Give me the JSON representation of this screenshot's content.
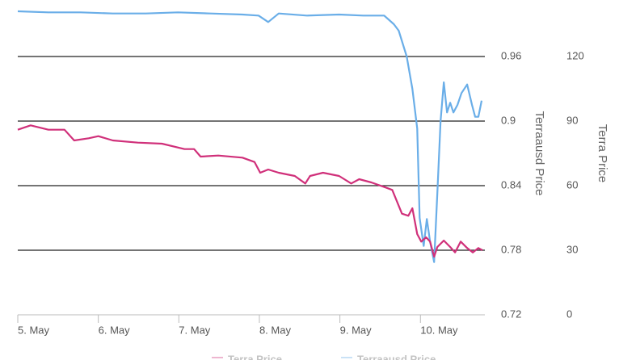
{
  "chart_data": {
    "type": "line",
    "y_title": "Terraausd Price",
    "y2_title": "Terra Price",
    "xlim": [
      5,
      10.8
    ],
    "xticks": [
      {
        "value": 5,
        "label": "5. May"
      },
      {
        "value": 6,
        "label": "6. May"
      },
      {
        "value": 7,
        "label": "7. May"
      },
      {
        "value": 8,
        "label": "8. May"
      },
      {
        "value": 9,
        "label": "9. May"
      },
      {
        "value": 10,
        "label": "10. May"
      }
    ],
    "ylim": [
      0.72,
      1.02
    ],
    "yticks": [
      0.72,
      0.78,
      0.84,
      0.9,
      0.96
    ],
    "y2lim": [
      0,
      150
    ],
    "y2ticks": [
      0,
      30,
      60,
      90,
      120
    ],
    "grid": true,
    "series": [
      {
        "name": "Terraausd Price",
        "color": "#6aaee8",
        "x": [
          5.0,
          5.38,
          5.78,
          6.18,
          6.59,
          6.99,
          7.39,
          7.79,
          7.99,
          8.11,
          8.24,
          8.59,
          8.99,
          9.29,
          9.55,
          9.67,
          9.73,
          9.83,
          9.9,
          9.96,
          9.99,
          10.04,
          10.08,
          10.12,
          10.17,
          10.21,
          10.25,
          10.29,
          10.33,
          10.37,
          10.41,
          10.46,
          10.51,
          10.58,
          10.64,
          10.68,
          10.72,
          10.76
        ],
        "values": [
          1.002,
          1.001,
          1.001,
          1.0,
          1.0,
          1.001,
          1.0,
          0.999,
          0.998,
          0.992,
          1.0,
          0.998,
          0.999,
          0.998,
          0.998,
          0.99,
          0.984,
          0.96,
          0.93,
          0.893,
          0.81,
          0.784,
          0.809,
          0.788,
          0.769,
          0.833,
          0.9,
          0.936,
          0.908,
          0.917,
          0.908,
          0.915,
          0.926,
          0.934,
          0.915,
          0.904,
          0.904,
          0.919
        ]
      },
      {
        "name": "Terra Price",
        "color": "#d0307a",
        "axis": "y2",
        "x": [
          5.0,
          5.16,
          5.38,
          5.58,
          5.7,
          5.88,
          6.0,
          6.18,
          6.49,
          6.79,
          7.07,
          7.19,
          7.27,
          7.49,
          7.79,
          7.94,
          8.01,
          8.11,
          8.24,
          8.44,
          8.57,
          8.63,
          8.79,
          8.99,
          9.14,
          9.24,
          9.39,
          9.58,
          9.65,
          9.77,
          9.85,
          9.9,
          9.96,
          10.01,
          10.07,
          10.12,
          10.17,
          10.21,
          10.29,
          10.37,
          10.43,
          10.5,
          10.58,
          10.65,
          10.72,
          10.77
        ],
        "values": [
          86,
          88,
          86,
          86,
          81,
          82,
          83,
          81,
          80,
          79.5,
          77,
          77,
          73.5,
          74,
          73,
          71,
          66,
          67.5,
          66,
          64.5,
          61,
          64.5,
          66,
          64.5,
          61,
          63,
          61.5,
          59,
          58,
          47,
          46,
          49.5,
          37.5,
          34,
          36,
          34,
          27,
          31.5,
          34.5,
          31.5,
          29,
          34,
          31,
          29,
          31,
          30
        ]
      }
    ]
  }
}
